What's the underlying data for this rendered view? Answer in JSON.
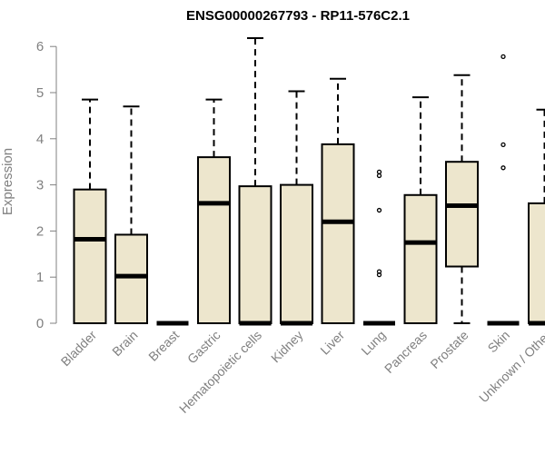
{
  "chart_data": {
    "type": "boxplot",
    "title": "ENSG00000267793 - RP11-576C2.1",
    "ylabel": "Expression",
    "xlabel": "",
    "ylim": [
      0,
      6.3
    ],
    "yticks": [
      0,
      1,
      2,
      3,
      4,
      5,
      6
    ],
    "grid": false,
    "colors": {
      "box_fill": "#ede6cd",
      "box_stroke": "#000000",
      "axis_text": "#808080",
      "title": "#000000"
    },
    "categories": [
      "Bladder",
      "Brain",
      "Breast",
      "Gastric",
      "Hematopoietic cells",
      "Kidney",
      "Liver",
      "Lung",
      "Pancreas",
      "Prostate",
      "Skin",
      "Unknown / Other"
    ],
    "boxes": [
      {
        "min": 0,
        "q1": 0,
        "median": 1.82,
        "q3": 2.9,
        "max": 4.85,
        "outliers": []
      },
      {
        "min": 0,
        "q1": 0,
        "median": 1.02,
        "q3": 1.92,
        "max": 4.7,
        "outliers": []
      },
      {
        "min": 0,
        "q1": 0,
        "median": 0,
        "q3": 0,
        "max": 0,
        "outliers": []
      },
      {
        "min": 0,
        "q1": 0,
        "median": 2.6,
        "q3": 3.6,
        "max": 4.85,
        "outliers": []
      },
      {
        "min": 0,
        "q1": 0,
        "median": 0,
        "q3": 2.97,
        "max": 6.18,
        "outliers": []
      },
      {
        "min": 0,
        "q1": 0,
        "median": 0,
        "q3": 3.0,
        "max": 5.03,
        "outliers": []
      },
      {
        "min": 0,
        "q1": 0,
        "median": 2.2,
        "q3": 3.88,
        "max": 5.3,
        "outliers": []
      },
      {
        "min": 0,
        "q1": 0,
        "median": 0,
        "q3": 0,
        "max": 0,
        "outliers": [
          3.28,
          3.2,
          2.45,
          1.12,
          1.05
        ]
      },
      {
        "min": 0,
        "q1": 0,
        "median": 1.75,
        "q3": 2.78,
        "max": 4.9,
        "outliers": []
      },
      {
        "min": 0,
        "q1": 1.23,
        "median": 2.55,
        "q3": 3.5,
        "max": 5.38,
        "outliers": []
      },
      {
        "min": 0,
        "q1": 0,
        "median": 0,
        "q3": 0,
        "max": 0,
        "outliers": [
          5.78,
          3.87,
          3.37
        ]
      },
      {
        "min": 0,
        "q1": 0,
        "median": 0,
        "q3": 2.6,
        "max": 4.63,
        "outliers": []
      }
    ]
  }
}
